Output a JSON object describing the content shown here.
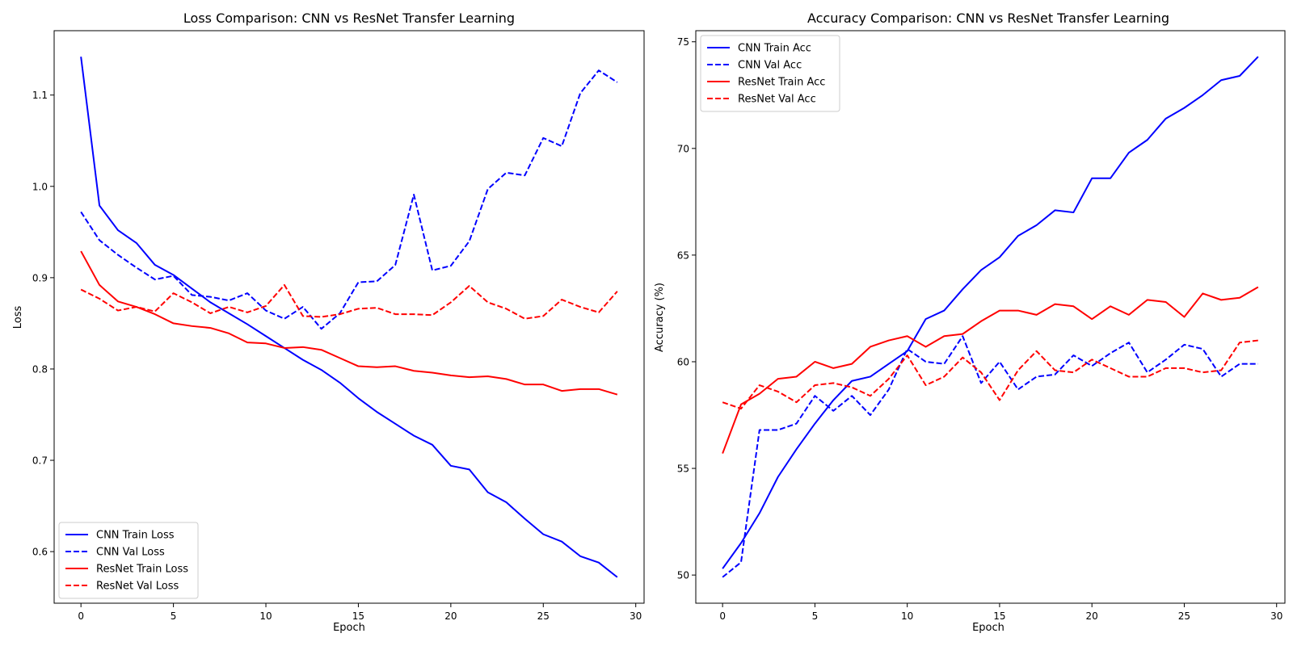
{
  "chart_data": [
    {
      "type": "line",
      "title": "Loss Comparison: CNN vs ResNet Transfer Learning",
      "xlabel": "Epoch",
      "ylabel": "Loss",
      "xlim": [
        -1.45,
        30.45
      ],
      "ylim": [
        0.5435,
        1.1705
      ],
      "xticks": [
        0,
        5,
        10,
        15,
        20,
        25,
        30
      ],
      "yticks": [
        0.6,
        0.7,
        0.8,
        0.9,
        1.0,
        1.1
      ],
      "ytick_labels": [
        "0.6",
        "0.7",
        "0.8",
        "0.9",
        "1.0",
        "1.1"
      ],
      "legend_position": "lower-left",
      "grid": false,
      "x": [
        0,
        1,
        2,
        3,
        4,
        5,
        6,
        7,
        8,
        9,
        10,
        11,
        12,
        13,
        14,
        15,
        16,
        17,
        18,
        19,
        20,
        21,
        22,
        23,
        24,
        25,
        26,
        27,
        28,
        29
      ],
      "series": [
        {
          "name": "CNN Train Loss",
          "color": "#0000ff",
          "style": "solid",
          "values": [
            1.142,
            0.979,
            0.952,
            0.938,
            0.914,
            0.903,
            0.888,
            0.873,
            0.861,
            0.849,
            0.836,
            0.823,
            0.81,
            0.799,
            0.785,
            0.768,
            0.753,
            0.74,
            0.727,
            0.717,
            0.694,
            0.69,
            0.665,
            0.654,
            0.636,
            0.619,
            0.611,
            0.595,
            0.588,
            0.572
          ]
        },
        {
          "name": "CNN Val Loss",
          "color": "#0000ff",
          "style": "dashed",
          "values": [
            0.972,
            0.941,
            0.925,
            0.911,
            0.898,
            0.902,
            0.881,
            0.879,
            0.875,
            0.883,
            0.864,
            0.855,
            0.868,
            0.844,
            0.861,
            0.895,
            0.896,
            0.914,
            0.991,
            0.908,
            0.913,
            0.94,
            0.997,
            1.015,
            1.012,
            1.053,
            1.044,
            1.102,
            1.127,
            1.114
          ]
        },
        {
          "name": "ResNet Train Loss",
          "color": "#ff0000",
          "style": "solid",
          "values": [
            0.929,
            0.892,
            0.874,
            0.868,
            0.86,
            0.85,
            0.847,
            0.845,
            0.839,
            0.829,
            0.828,
            0.823,
            0.824,
            0.821,
            0.812,
            0.803,
            0.802,
            0.803,
            0.798,
            0.796,
            0.793,
            0.791,
            0.792,
            0.789,
            0.783,
            0.783,
            0.776,
            0.778,
            0.778,
            0.772
          ]
        },
        {
          "name": "ResNet Val Loss",
          "color": "#ff0000",
          "style": "dashed",
          "values": [
            0.887,
            0.877,
            0.864,
            0.868,
            0.863,
            0.883,
            0.873,
            0.861,
            0.868,
            0.862,
            0.869,
            0.892,
            0.858,
            0.857,
            0.86,
            0.866,
            0.867,
            0.86,
            0.86,
            0.859,
            0.873,
            0.891,
            0.873,
            0.866,
            0.855,
            0.858,
            0.876,
            0.868,
            0.862,
            0.885
          ]
        }
      ]
    },
    {
      "type": "line",
      "title": "Accuracy Comparison: CNN vs ResNet Transfer Learning",
      "xlabel": "Epoch",
      "ylabel": "Accuracy (%)",
      "xlim": [
        -1.45,
        30.45
      ],
      "ylim": [
        48.68,
        75.52
      ],
      "xticks": [
        0,
        5,
        10,
        15,
        20,
        25,
        30
      ],
      "yticks": [
        50,
        55,
        60,
        65,
        70,
        75
      ],
      "ytick_labels": [
        "50",
        "55",
        "60",
        "65",
        "70",
        "75"
      ],
      "legend_position": "upper-left",
      "grid": false,
      "x": [
        0,
        1,
        2,
        3,
        4,
        5,
        6,
        7,
        8,
        9,
        10,
        11,
        12,
        13,
        14,
        15,
        16,
        17,
        18,
        19,
        20,
        21,
        22,
        23,
        24,
        25,
        26,
        27,
        28,
        29
      ],
      "series": [
        {
          "name": "CNN Train Acc",
          "color": "#0000ff",
          "style": "solid",
          "values": [
            50.3,
            51.5,
            52.9,
            54.6,
            55.9,
            57.1,
            58.2,
            59.1,
            59.3,
            59.9,
            60.5,
            62.0,
            62.4,
            63.4,
            64.3,
            64.9,
            65.9,
            66.4,
            67.1,
            67.0,
            68.6,
            68.6,
            69.8,
            70.4,
            71.4,
            71.9,
            72.5,
            73.2,
            73.4,
            74.3
          ]
        },
        {
          "name": "CNN Val Acc",
          "color": "#0000ff",
          "style": "dashed",
          "values": [
            49.9,
            50.6,
            56.8,
            56.8,
            57.1,
            58.4,
            57.7,
            58.4,
            57.5,
            58.7,
            60.6,
            60.0,
            59.9,
            61.2,
            59.0,
            60.0,
            58.7,
            59.3,
            59.4,
            60.3,
            59.8,
            60.4,
            60.9,
            59.5,
            60.1,
            60.8,
            60.6,
            59.3,
            59.9,
            59.9
          ]
        },
        {
          "name": "ResNet Train Acc",
          "color": "#ff0000",
          "style": "solid",
          "values": [
            55.7,
            58.0,
            58.5,
            59.2,
            59.3,
            60.0,
            59.7,
            59.9,
            60.7,
            61.0,
            61.2,
            60.7,
            61.2,
            61.3,
            61.9,
            62.4,
            62.4,
            62.2,
            62.7,
            62.6,
            62.0,
            62.6,
            62.2,
            62.9,
            62.8,
            62.1,
            63.2,
            62.9,
            63.0,
            63.5
          ]
        },
        {
          "name": "ResNet Val Acc",
          "color": "#ff0000",
          "style": "dashed",
          "values": [
            58.1,
            57.8,
            58.9,
            58.6,
            58.1,
            58.9,
            59.0,
            58.8,
            58.4,
            59.2,
            60.3,
            58.9,
            59.3,
            60.2,
            59.5,
            58.2,
            59.6,
            60.5,
            59.6,
            59.5,
            60.1,
            59.7,
            59.3,
            59.3,
            59.7,
            59.7,
            59.5,
            59.6,
            60.9,
            61.0
          ]
        }
      ]
    }
  ]
}
